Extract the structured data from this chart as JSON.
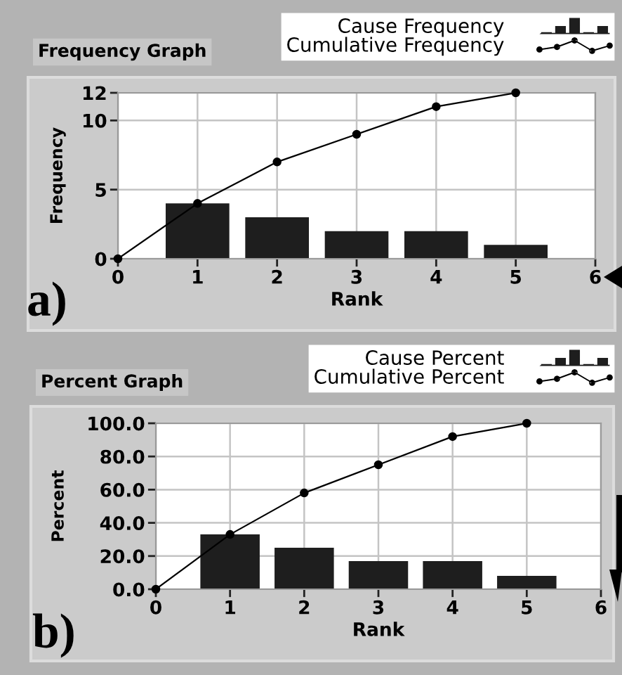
{
  "chart_data": [
    {
      "type": "bar",
      "title": "Frequency Graph",
      "xlabel": "Rank",
      "ylabel": "Frequency",
      "series": [
        {
          "name": "Cause Frequency",
          "color": "#1e1e1e",
          "x": [
            1,
            2,
            3,
            4,
            5
          ],
          "values": [
            4,
            3,
            2,
            2,
            1
          ]
        },
        {
          "name": "Cumulative Frequency",
          "type": "line",
          "color": "#000000",
          "marker": "circle",
          "x": [
            0,
            1,
            2,
            3,
            4,
            5
          ],
          "values": [
            0,
            4,
            7,
            9,
            11,
            12
          ]
        }
      ],
      "xlim": [
        0,
        6
      ],
      "xticks": [
        0,
        1,
        2,
        3,
        4,
        5,
        6
      ],
      "ylim": [
        0,
        12
      ],
      "yticks": [
        0,
        5,
        10,
        12
      ],
      "grid": true,
      "legend": "top right",
      "annotations": [
        "a)"
      ]
    },
    {
      "type": "bar",
      "title": "Percent Graph",
      "xlabel": "Rank",
      "ylabel": "Percent",
      "series": [
        {
          "name": "Cause Percent",
          "color": "#1e1e1e",
          "x": [
            1,
            2,
            3,
            4,
            5
          ],
          "values": [
            33,
            25,
            17,
            17,
            8
          ]
        },
        {
          "name": "Cumulative Percent",
          "type": "line",
          "color": "#000000",
          "marker": "circle",
          "x": [
            0,
            1,
            2,
            3,
            4,
            5
          ],
          "values": [
            0,
            33,
            58,
            75,
            92,
            100
          ]
        }
      ],
      "xlim": [
        0,
        6
      ],
      "xticks": [
        0,
        1,
        2,
        3,
        4,
        5,
        6
      ],
      "ylim": [
        0,
        100
      ],
      "yticks": [
        {
          "value": 0,
          "label": "0.0"
        },
        {
          "value": 20,
          "label": "20.0"
        },
        {
          "value": 40,
          "label": "40.0"
        },
        {
          "value": 60,
          "label": "60.0"
        },
        {
          "value": 80,
          "label": "80.0"
        },
        {
          "value": 100,
          "label": "100.0"
        }
      ],
      "grid": true,
      "legend": "top right",
      "annotations": [
        "b)"
      ]
    }
  ]
}
